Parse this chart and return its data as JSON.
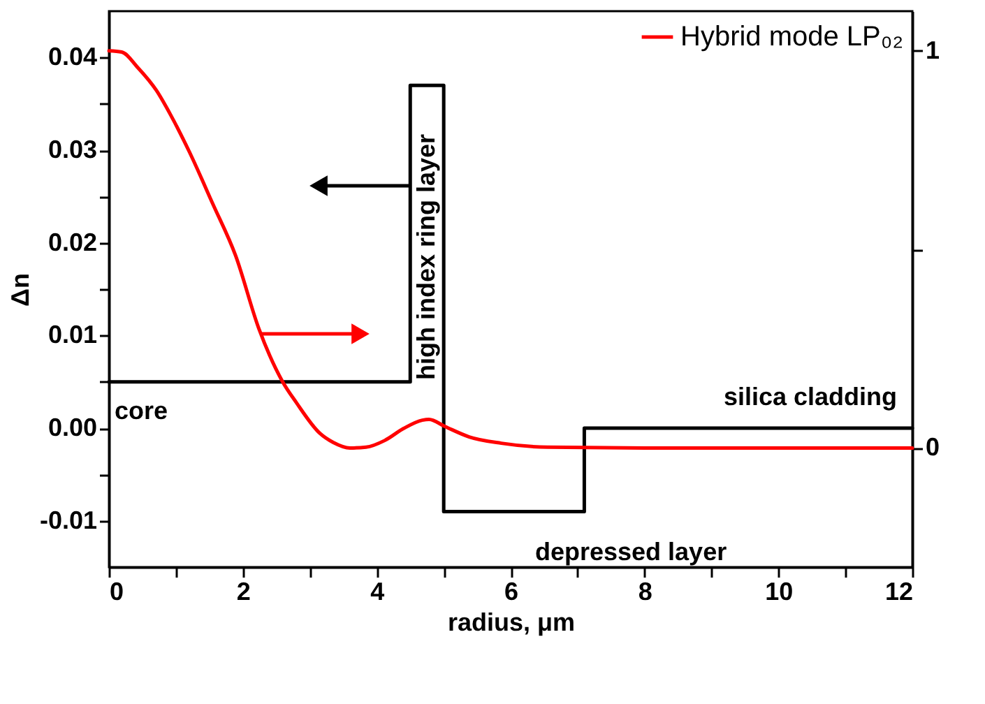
{
  "chart_data": {
    "type": "line",
    "xlabel": "radius, μm",
    "ylabel": "Δn",
    "xlim": [
      0,
      12
    ],
    "xticks": [
      0,
      {
        "value": 1,
        "label": null
      },
      2,
      {
        "value": 3,
        "label": null
      },
      4,
      {
        "value": 5,
        "label": null
      },
      6,
      {
        "value": 7,
        "label": null
      },
      8,
      {
        "value": 9,
        "label": null
      },
      10,
      {
        "value": 11,
        "label": null
      },
      12
    ],
    "ylim": [
      -0.015,
      0.045
    ],
    "yticks": [
      -0.01,
      {
        "value": -0.005,
        "label": null
      },
      {
        "value": 0,
        "label": "0.00"
      },
      {
        "value": 0.005,
        "label": null
      },
      0.01,
      {
        "value": 0.015,
        "label": null
      },
      0.02,
      {
        "value": 0.025,
        "label": null
      },
      0.03,
      {
        "value": 0.035,
        "label": null
      },
      0.04
    ],
    "y2lim": [
      -0.3,
      1.1
    ],
    "y2ticks": [
      0,
      {
        "value": 0.5,
        "label": null
      },
      1
    ],
    "legend": "top right",
    "grid": false,
    "series": [
      {
        "type": "step",
        "color": "#000000",
        "x": [
          0,
          4.5,
          5.0,
          7.1,
          12
        ],
        "values": [
          0.005,
          0.037,
          -0.009,
          0.0,
          0.0
        ]
      },
      {
        "name": "Hybrid mode LP₀₂",
        "color": "#ff0000",
        "axis": "y2",
        "x": [
          0,
          0.19,
          0.43,
          0.71,
          0.92,
          1.2,
          1.55,
          1.89,
          2.24,
          2.59,
          2.8,
          3.15,
          3.35,
          3.6,
          3.84,
          4.12,
          4.4,
          4.68,
          4.78,
          5.02,
          5.38,
          5.86,
          6.55,
          8,
          10,
          12
        ],
        "values": [
          1.0,
          0.997,
          0.958,
          0.9,
          0.839,
          0.746,
          0.615,
          0.485,
          0.3,
          0.168,
          0.114,
          0.037,
          0.014,
          0.0,
          0.002,
          0.019,
          0.049,
          0.07,
          0.072,
          0.054,
          0.028,
          0.012,
          0.002,
          0.0,
          0.0,
          0.0
        ]
      }
    ],
    "annotations": [
      "core",
      "high index ring layer",
      "depressed layer",
      "silica cladding"
    ]
  }
}
